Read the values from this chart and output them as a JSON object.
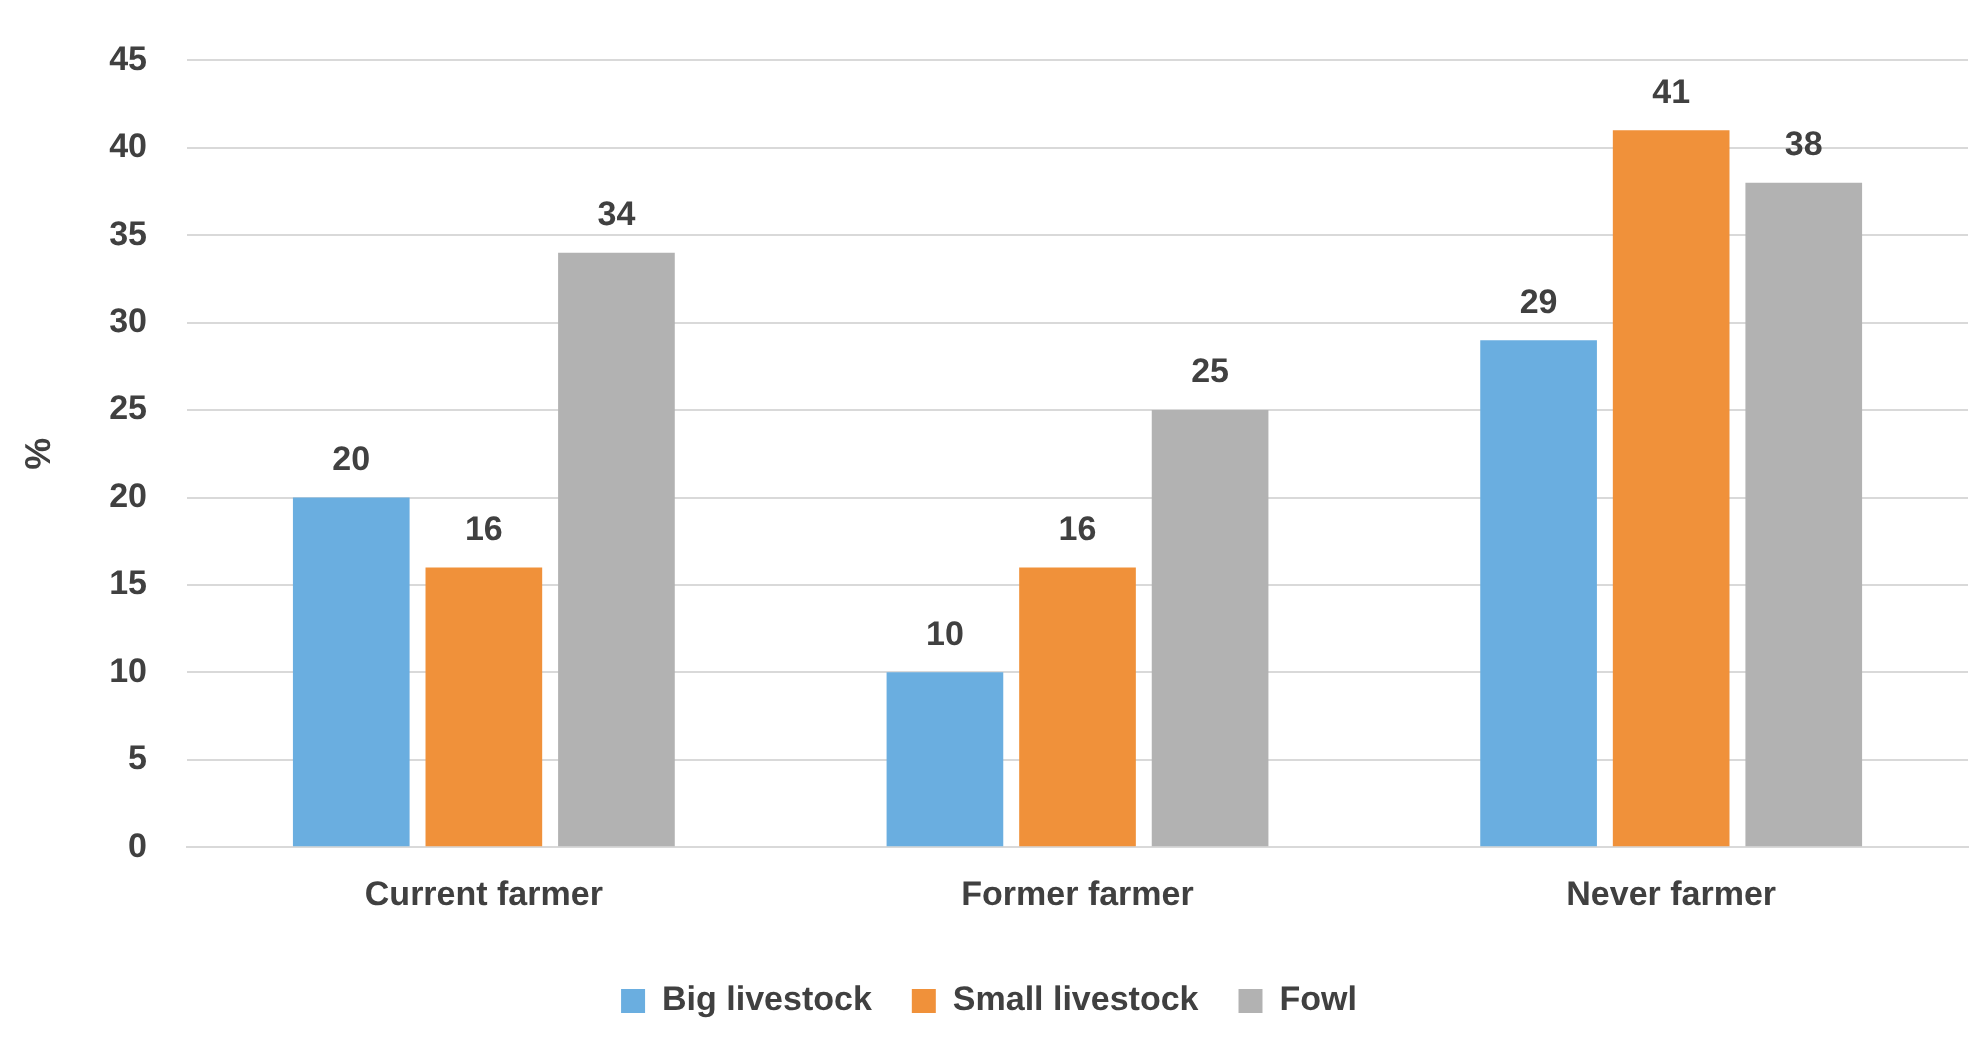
{
  "chart_data": {
    "type": "bar",
    "ylabel": "%",
    "categories": [
      "Current farmer",
      "Former farmer",
      "Never farmer"
    ],
    "series": [
      {
        "name": "Big livestock",
        "color": "#6aaee0",
        "values": [
          20,
          10,
          29
        ]
      },
      {
        "name": "Small livestock",
        "color": "#f0913a",
        "values": [
          16,
          16,
          41
        ]
      },
      {
        "name": "Fowl",
        "color": "#b2b2b2",
        "values": [
          34,
          25,
          38
        ]
      }
    ],
    "ylim": [
      0,
      45
    ],
    "yticks": [
      0,
      5,
      10,
      15,
      20,
      25,
      30,
      35,
      40,
      45
    ],
    "grid": "y",
    "legend": "bottom",
    "data_labels": true
  }
}
